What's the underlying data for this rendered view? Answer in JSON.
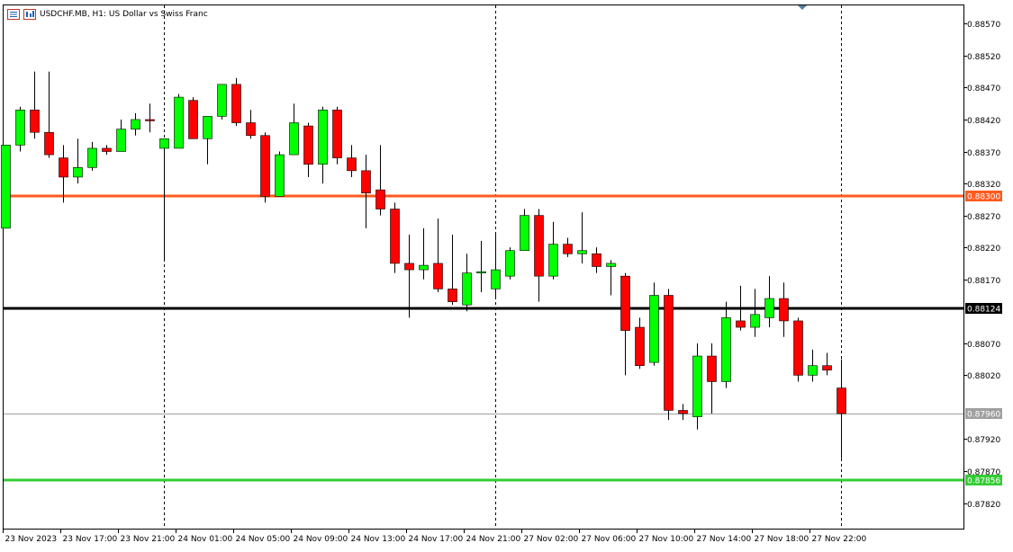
{
  "window": {
    "title": "USDCHF.MB, H1:  US Dollar vs Swiss Franc",
    "icons": [
      "list-icon",
      "chart-window-icon"
    ]
  },
  "colors": {
    "bull": "#00ff00",
    "bear": "#ff0000",
    "wick": "#000000",
    "grid": "#000000",
    "background": "#ffffff",
    "resistance": "#ff5a1f",
    "pivot": "#000000",
    "support": "#33cc33",
    "bid": "#a0a0a0",
    "tag_resistance": "#ff5a1f",
    "tag_pivot": "#000000",
    "tag_support": "#33cc33",
    "tag_bid": "#a0a0a0"
  },
  "chart_data": {
    "type": "candlestick",
    "symbol": "USDCHF.MB",
    "timeframe": "H1",
    "title": "USDCHF.MB, H1:  US Dollar vs Swiss Franc",
    "ylim": [
      0.8778,
      0.886
    ],
    "y_ticks": [
      "0.88570",
      "0.88520",
      "0.88470",
      "0.88420",
      "0.88370",
      "0.88320",
      "0.88270",
      "0.88220",
      "0.88170",
      "0.88070",
      "0.88020",
      "0.87920",
      "0.87870",
      "0.87820"
    ],
    "x_ticks": [
      "23 Nov 2023",
      "23 Nov 17:00",
      "23 Nov 21:00",
      "24 Nov 01:00",
      "24 Nov 05:00",
      "24 Nov 09:00",
      "24 Nov 13:00",
      "24 Nov 17:00",
      "24 Nov 21:00",
      "27 Nov 02:00",
      "27 Nov 06:00",
      "27 Nov 10:00",
      "27 Nov 14:00",
      "27 Nov 18:00",
      "27 Nov 22:00"
    ],
    "x_tick_candle_index": [
      0,
      4,
      8,
      12,
      16,
      20,
      24,
      28,
      32,
      36,
      40,
      44,
      48,
      52,
      56
    ],
    "session_separators_candle_index": [
      11,
      34,
      58
    ],
    "horizontal_lines": [
      {
        "role": "resistance",
        "value": 0.883,
        "label": "0.88300"
      },
      {
        "role": "pivot",
        "value": 0.88124,
        "label": "0.88124"
      },
      {
        "role": "bid",
        "value": 0.8796,
        "label": "0.87960"
      },
      {
        "role": "support",
        "value": 0.87856,
        "label": "0.87856"
      }
    ],
    "candles": [
      {
        "o": 0.8825,
        "h": 0.8838,
        "l": 0.8825,
        "c": 0.8838
      },
      {
        "o": 0.8838,
        "h": 0.8844,
        "l": 0.8837,
        "c": 0.88435
      },
      {
        "o": 0.88435,
        "h": 0.88495,
        "l": 0.8839,
        "c": 0.884
      },
      {
        "o": 0.884,
        "h": 0.88495,
        "l": 0.8836,
        "c": 0.88365
      },
      {
        "o": 0.8836,
        "h": 0.8838,
        "l": 0.8829,
        "c": 0.8833
      },
      {
        "o": 0.8833,
        "h": 0.8839,
        "l": 0.8832,
        "c": 0.88345
      },
      {
        "o": 0.88345,
        "h": 0.88385,
        "l": 0.8834,
        "c": 0.88375
      },
      {
        "o": 0.88375,
        "h": 0.8838,
        "l": 0.88365,
        "c": 0.8837
      },
      {
        "o": 0.8837,
        "h": 0.8842,
        "l": 0.8837,
        "c": 0.88405
      },
      {
        "o": 0.88405,
        "h": 0.8843,
        "l": 0.88395,
        "c": 0.8842
      },
      {
        "o": 0.8842,
        "h": 0.88445,
        "l": 0.884,
        "c": 0.88418
      },
      {
        "o": 0.88375,
        "h": 0.8839,
        "l": 0.882,
        "c": 0.8839
      },
      {
        "o": 0.88375,
        "h": 0.8846,
        "l": 0.88375,
        "c": 0.88455
      },
      {
        "o": 0.8845,
        "h": 0.88455,
        "l": 0.8839,
        "c": 0.8839
      },
      {
        "o": 0.8839,
        "h": 0.88425,
        "l": 0.8835,
        "c": 0.88425
      },
      {
        "o": 0.88425,
        "h": 0.88475,
        "l": 0.8842,
        "c": 0.88475
      },
      {
        "o": 0.88475,
        "h": 0.88485,
        "l": 0.8841,
        "c": 0.88415
      },
      {
        "o": 0.88415,
        "h": 0.88435,
        "l": 0.8839,
        "c": 0.88395
      },
      {
        "o": 0.88395,
        "h": 0.884,
        "l": 0.8829,
        "c": 0.883
      },
      {
        "o": 0.883,
        "h": 0.8837,
        "l": 0.883,
        "c": 0.88365
      },
      {
        "o": 0.88365,
        "h": 0.88445,
        "l": 0.88365,
        "c": 0.88415
      },
      {
        "o": 0.8841,
        "h": 0.88415,
        "l": 0.8833,
        "c": 0.8835
      },
      {
        "o": 0.8835,
        "h": 0.8844,
        "l": 0.8832,
        "c": 0.88435
      },
      {
        "o": 0.88435,
        "h": 0.8844,
        "l": 0.8835,
        "c": 0.8836
      },
      {
        "o": 0.8836,
        "h": 0.8838,
        "l": 0.8833,
        "c": 0.8834
      },
      {
        "o": 0.8834,
        "h": 0.88365,
        "l": 0.8825,
        "c": 0.88305
      },
      {
        "o": 0.8831,
        "h": 0.8838,
        "l": 0.8827,
        "c": 0.8828
      },
      {
        "o": 0.8828,
        "h": 0.8829,
        "l": 0.8818,
        "c": 0.88195
      },
      {
        "o": 0.88195,
        "h": 0.8824,
        "l": 0.8811,
        "c": 0.88185
      },
      {
        "o": 0.88185,
        "h": 0.8825,
        "l": 0.8817,
        "c": 0.88192
      },
      {
        "o": 0.88195,
        "h": 0.88265,
        "l": 0.8815,
        "c": 0.88155
      },
      {
        "o": 0.88155,
        "h": 0.8824,
        "l": 0.8813,
        "c": 0.88135
      },
      {
        "o": 0.8813,
        "h": 0.8821,
        "l": 0.8812,
        "c": 0.8818
      },
      {
        "o": 0.8818,
        "h": 0.8823,
        "l": 0.8815,
        "c": 0.88182
      },
      {
        "o": 0.88155,
        "h": 0.8824,
        "l": 0.8814,
        "c": 0.88185
      },
      {
        "o": 0.88175,
        "h": 0.8822,
        "l": 0.8817,
        "c": 0.88215
      },
      {
        "o": 0.88215,
        "h": 0.8828,
        "l": 0.88215,
        "c": 0.8827
      },
      {
        "o": 0.8827,
        "h": 0.8828,
        "l": 0.88135,
        "c": 0.88175
      },
      {
        "o": 0.88175,
        "h": 0.8826,
        "l": 0.8817,
        "c": 0.88225
      },
      {
        "o": 0.88225,
        "h": 0.88235,
        "l": 0.88205,
        "c": 0.8821
      },
      {
        "o": 0.8821,
        "h": 0.88275,
        "l": 0.88195,
        "c": 0.88215
      },
      {
        "o": 0.8821,
        "h": 0.8822,
        "l": 0.8818,
        "c": 0.8819
      },
      {
        "o": 0.8819,
        "h": 0.882,
        "l": 0.88145,
        "c": 0.88195
      },
      {
        "o": 0.88175,
        "h": 0.8818,
        "l": 0.8802,
        "c": 0.8809
      },
      {
        "o": 0.88095,
        "h": 0.8811,
        "l": 0.8803,
        "c": 0.88035
      },
      {
        "o": 0.8804,
        "h": 0.88165,
        "l": 0.88035,
        "c": 0.88145
      },
      {
        "o": 0.88145,
        "h": 0.88155,
        "l": 0.8795,
        "c": 0.87965
      },
      {
        "o": 0.87965,
        "h": 0.87975,
        "l": 0.8795,
        "c": 0.8796
      },
      {
        "o": 0.87955,
        "h": 0.8807,
        "l": 0.87935,
        "c": 0.8805
      },
      {
        "o": 0.8805,
        "h": 0.8807,
        "l": 0.8796,
        "c": 0.8801
      },
      {
        "o": 0.8801,
        "h": 0.88135,
        "l": 0.88,
        "c": 0.8811
      },
      {
        "o": 0.88105,
        "h": 0.8816,
        "l": 0.8809,
        "c": 0.88095
      },
      {
        "o": 0.88095,
        "h": 0.88155,
        "l": 0.8808,
        "c": 0.88115
      },
      {
        "o": 0.8811,
        "h": 0.88175,
        "l": 0.88095,
        "c": 0.8814
      },
      {
        "o": 0.8814,
        "h": 0.88165,
        "l": 0.8808,
        "c": 0.88105
      },
      {
        "o": 0.88105,
        "h": 0.8811,
        "l": 0.8801,
        "c": 0.8802
      },
      {
        "o": 0.8802,
        "h": 0.8806,
        "l": 0.8801,
        "c": 0.88035
      },
      {
        "o": 0.88035,
        "h": 0.88055,
        "l": 0.8802,
        "c": 0.88028
      },
      {
        "o": 0.88,
        "h": 0.88045,
        "l": 0.8789,
        "c": 0.8796
      }
    ]
  }
}
